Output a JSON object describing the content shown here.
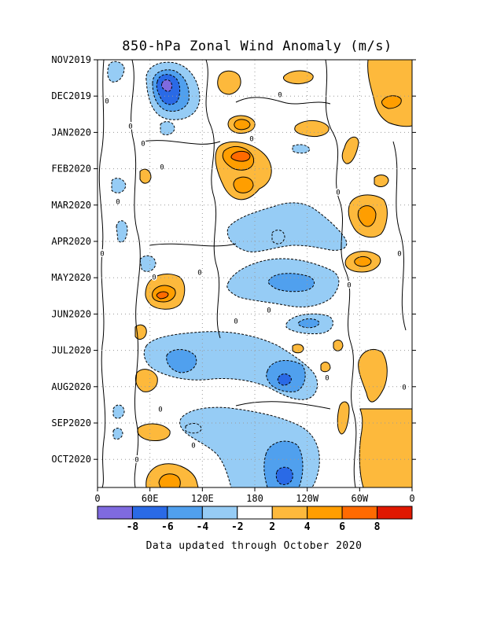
{
  "chart_data": {
    "type": "heatmap",
    "title": "850-hPa Zonal Wind Anomaly (m/s)",
    "footer": "Data updated through October 2020",
    "xlabel": "",
    "ylabel": "",
    "x_ticks": [
      "0",
      "60E",
      "120E",
      "180",
      "120W",
      "60W",
      "0"
    ],
    "x_tick_degrees": [
      0,
      60,
      120,
      180,
      240,
      300,
      360
    ],
    "y_ticks": [
      "NOV2019",
      "DEC2019",
      "JAN2020",
      "FEB2020",
      "MAR2020",
      "APR2020",
      "MAY2020",
      "JUN2020",
      "JUL2020",
      "AUG2020",
      "SEP2020",
      "OCT2020"
    ],
    "grid": true,
    "colorbar": {
      "levels": [
        -10,
        -8,
        -6,
        -4,
        -2,
        2,
        4,
        6,
        8,
        10
      ],
      "tick_labels": [
        "-8",
        "-6",
        "-4",
        "-2",
        "2",
        "4",
        "6",
        "8"
      ],
      "colors": [
        "#7f6adf",
        "#2a6ae6",
        "#50a0ee",
        "#96ccf5",
        "#ffffff",
        "#fdb93c",
        "#ff9e00",
        "#ff6a00",
        "#e01800"
      ]
    },
    "contour_label": "0",
    "anomalies": [
      {
        "lon": 75,
        "month": 0.6,
        "value": -9
      },
      {
        "lon": 18,
        "month": 0.4,
        "value": -3
      },
      {
        "lon": 90,
        "month": 2.1,
        "value": -3
      },
      {
        "lon": 170,
        "month": 3.0,
        "value": 7
      },
      {
        "lon": 162,
        "month": 1.5,
        "value": 4
      },
      {
        "lon": 245,
        "month": 1.6,
        "value": 3
      },
      {
        "lon": 320,
        "month": 4.3,
        "value": 5
      },
      {
        "lon": 335,
        "month": 0.5,
        "value": 4
      },
      {
        "lon": 305,
        "month": 5.6,
        "value": 4
      },
      {
        "lon": 75,
        "month": 6.5,
        "value": 6
      },
      {
        "lon": 230,
        "month": 5.5,
        "value": -4
      },
      {
        "lon": 210,
        "month": 4.8,
        "value": -3
      },
      {
        "lon": 230,
        "month": 7.2,
        "value": -3
      },
      {
        "lon": 145,
        "month": 8.2,
        "value": -3
      },
      {
        "lon": 225,
        "month": 8.8,
        "value": -4
      },
      {
        "lon": 225,
        "month": 11.2,
        "value": -5
      },
      {
        "lon": 175,
        "month": 11.0,
        "value": -3
      },
      {
        "lon": 75,
        "month": 11.6,
        "value": 5
      },
      {
        "lon": 330,
        "month": 9.5,
        "value": 3
      },
      {
        "lon": 110,
        "month": 2.9,
        "value": -3
      },
      {
        "lon": 40,
        "month": 4.5,
        "value": -2
      }
    ]
  }
}
